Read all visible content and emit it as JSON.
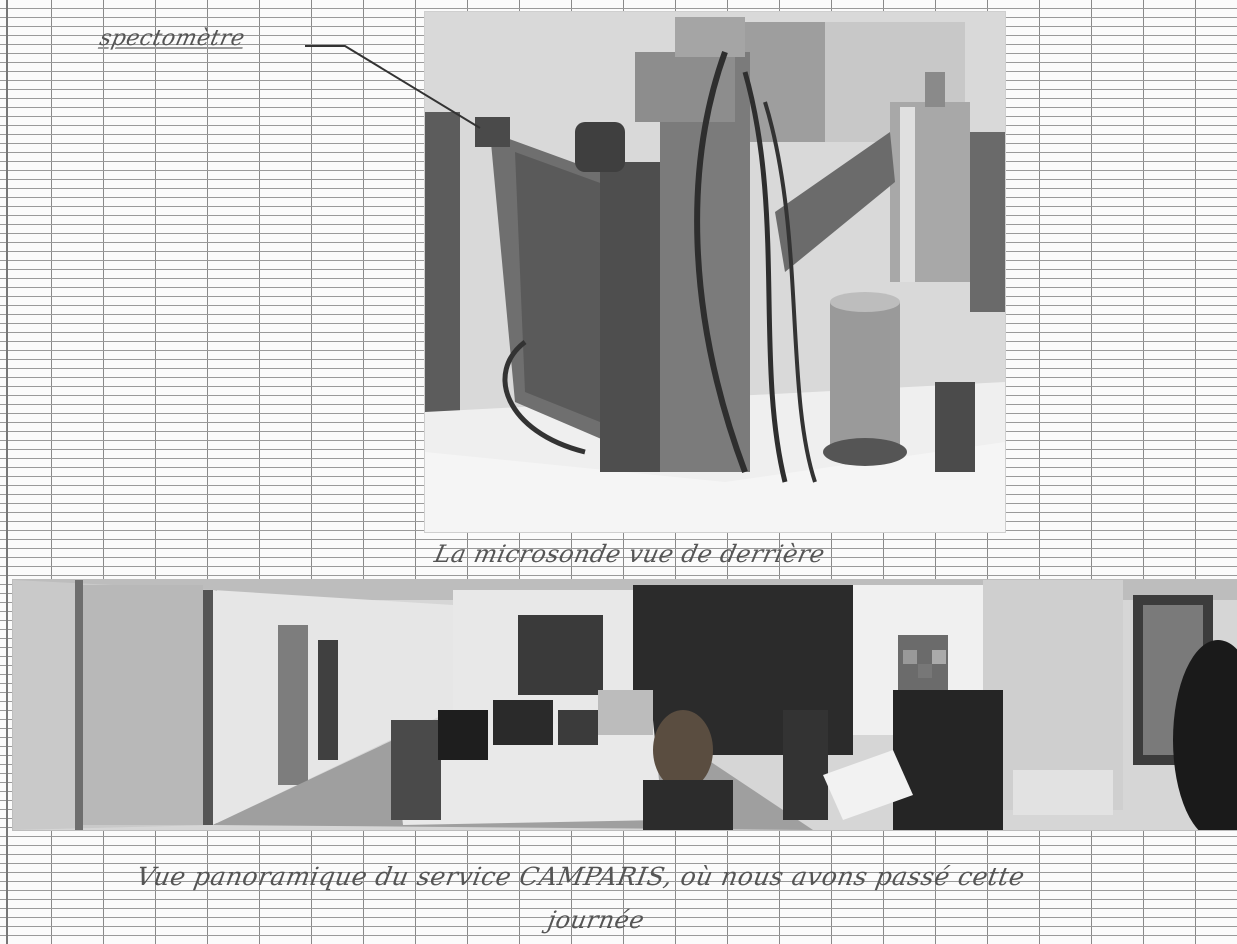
{
  "annotations": {
    "instrument_label": "spectomètre"
  },
  "captions": {
    "top_photo": "La microsonde vue de derrière",
    "bottom_photo_line1": "Vue panoramique du service CAMPARIS, où nous avons passé cette",
    "bottom_photo_line2": "journée"
  }
}
